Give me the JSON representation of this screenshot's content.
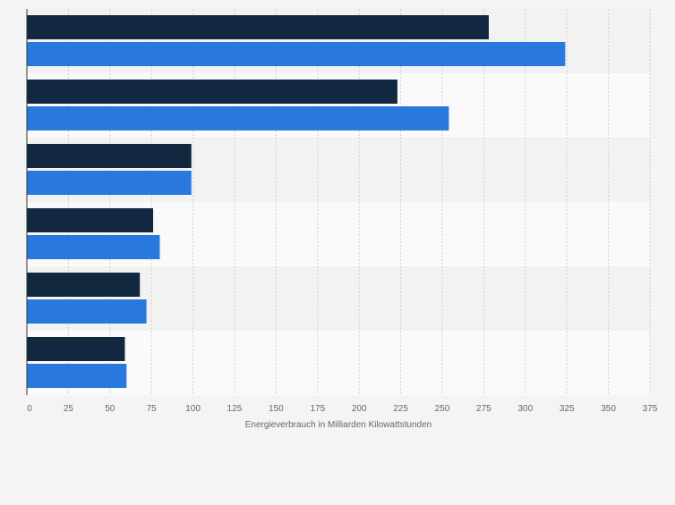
{
  "chart_data": {
    "type": "bar",
    "orientation": "horizontal",
    "categories": [
      "",
      "",
      "",
      "",
      "",
      ""
    ],
    "series": [
      {
        "values": [
          278,
          223,
          99,
          76,
          68,
          59
        ]
      },
      {
        "values": [
          324,
          254,
          99,
          80,
          72,
          60
        ]
      }
    ],
    "colors": [
      "#112840",
      "#2878de"
    ],
    "xlabel": "Energieverbrauch in Milliarden Kilowattstunden",
    "ylabel": "",
    "title": "",
    "xlim": [
      0,
      375
    ],
    "xticks": [
      "0",
      "25",
      "50",
      "75",
      "100",
      "125",
      "150",
      "175",
      "200",
      "225",
      "250",
      "275",
      "300",
      "325",
      "350",
      "375"
    ],
    "grid": "vertical dashed",
    "row_band_colors": [
      "#f2f2f2",
      "#fafafa"
    ],
    "legend": "none"
  }
}
